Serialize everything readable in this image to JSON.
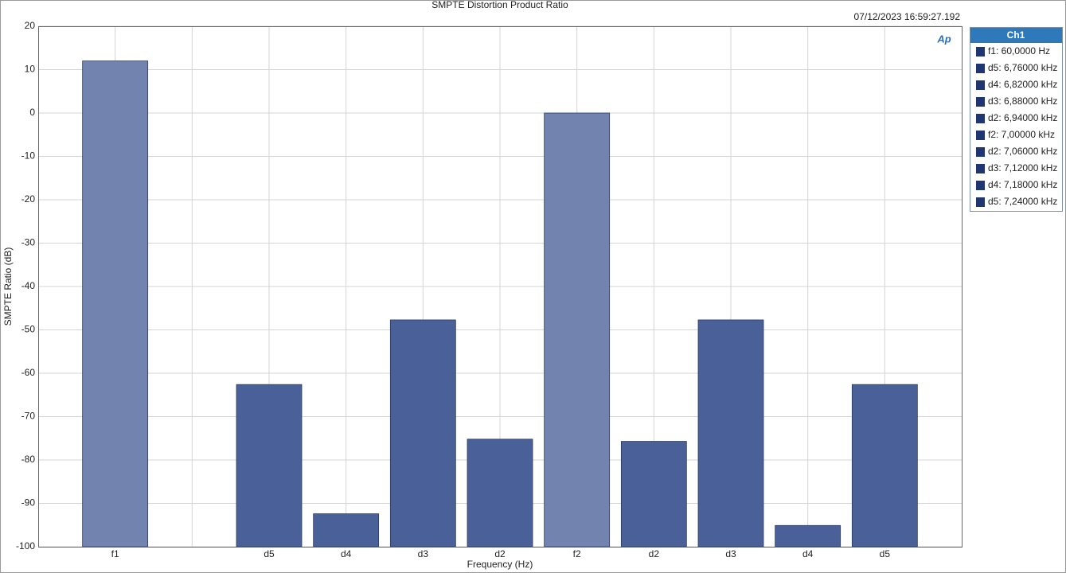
{
  "chart_data": {
    "type": "bar",
    "title": "SMPTE Distortion Product Ratio",
    "timestamp": "07/12/2023 16:59:27.192",
    "logo": "Ap",
    "x_label": "Frequency (Hz)",
    "y_label": "SMPTE Ratio (dB)",
    "categories": [
      "f1",
      null,
      "d5",
      "d4",
      "d3",
      "d2",
      "f2",
      "d2",
      "d3",
      "d4",
      "d5"
    ],
    "values": [
      12,
      null,
      -62.6,
      -92.4,
      -47.7,
      -75.2,
      0,
      -75.7,
      -47.7,
      -95.1,
      -62.6
    ],
    "colors": [
      "#7183ae",
      null,
      "#4a6098",
      "#4a6098",
      "#4a6098",
      "#4a6098",
      "#7183ae",
      "#4a6098",
      "#4a6098",
      "#4a6098",
      "#4a6098"
    ],
    "ylim": [
      -100,
      20
    ],
    "yticks": [
      -100,
      -90,
      -80,
      -70,
      -60,
      -50,
      -40,
      -30,
      -20,
      -10,
      0,
      10,
      20
    ],
    "grid": true,
    "legend": {
      "title": "Ch1",
      "color": "#1f3670",
      "entries": [
        "f1: 60,0000 Hz",
        "d5: 6,76000 kHz",
        "d4: 6,82000 kHz",
        "d3: 6,88000 kHz",
        "d2: 6,94000 kHz",
        "f2: 7,00000 kHz",
        "d2: 7,06000 kHz",
        "d3: 7,12000 kHz",
        "d4: 7,18000 kHz",
        "d5: 7,24000 kHz"
      ]
    }
  }
}
